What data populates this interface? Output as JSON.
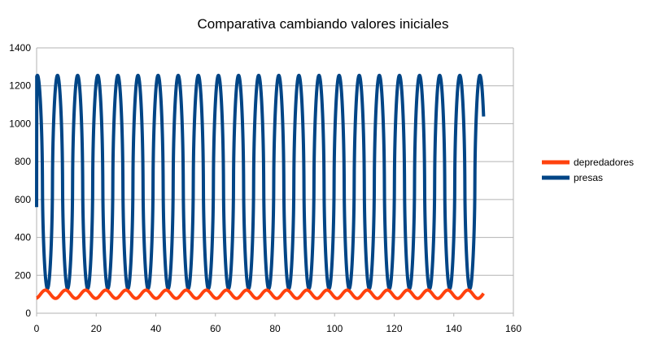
{
  "chart_data": {
    "type": "line",
    "title": "Comparativa cambiando valores iniciales",
    "xlabel": "",
    "ylabel": "",
    "xlim": [
      0,
      160
    ],
    "ylim": [
      0,
      1400
    ],
    "x_ticks": [
      0,
      20,
      40,
      60,
      80,
      100,
      120,
      140,
      160
    ],
    "y_ticks": [
      0,
      200,
      400,
      600,
      800,
      1000,
      1200,
      1400
    ],
    "grid": "horizontal",
    "legend_position": "right",
    "x_range_data": [
      0,
      150
    ],
    "series": [
      {
        "name": "depredadores",
        "color": "#ff420e",
        "cycle_period": 6.75,
        "min_value": 78,
        "max_value": 122,
        "start_value": 80
      },
      {
        "name": "presas",
        "color": "#004586",
        "cycle_period": 6.75,
        "min_value": 130,
        "max_value": 1255,
        "start_value": 560
      }
    ]
  }
}
